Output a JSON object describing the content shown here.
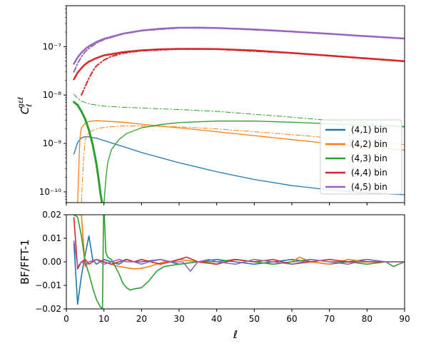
{
  "chart_data": [
    {
      "panel": "top",
      "type": "line",
      "ylabel": "C_ℓ^{gεℓ}",
      "ylabel_main": "C",
      "ylabel_sub": "ℓ",
      "ylabel_sup": "gεℓ",
      "yscale": "log",
      "xlim": [
        0,
        90
      ],
      "ylim": [
        6e-11,
        7e-07
      ],
      "yticks": [
        {
          "value": 1e-10,
          "label": "10⁻¹⁰"
        },
        {
          "value": 1e-09,
          "label": "10⁻⁹"
        },
        {
          "value": 1e-08,
          "label": "10⁻⁸"
        },
        {
          "value": 1e-07,
          "label": "10⁻⁷"
        }
      ],
      "legend_position": "bottom-right",
      "grid": false,
      "series": [
        {
          "name": "(4,1) bin",
          "color": "#1f77b4",
          "style": "solid",
          "width": 1.3,
          "x": [
            2,
            3,
            4,
            5,
            6,
            8,
            10,
            15,
            20,
            30,
            40,
            50,
            60,
            70,
            80,
            90
          ],
          "y": [
            6e-10,
            1.05e-09,
            1.3e-09,
            1.38e-09,
            1.37e-09,
            1.28e-09,
            1.15e-09,
            8.7e-10,
            6.5e-10,
            4e-10,
            2.6e-10,
            1.8e-10,
            1.35e-10,
            1.1e-10,
            9.5e-11,
            8.7e-11
          ]
        },
        {
          "name": "(4,2) bin",
          "color": "#ff7f0e",
          "style": "solid",
          "width": 1.3,
          "x": [
            3,
            3.3,
            3.6,
            4,
            5,
            6,
            8,
            10,
            15,
            20,
            30,
            40,
            50,
            60,
            70,
            80,
            90
          ],
          "y": [
            6e-11,
            3e-10,
            1.3e-09,
            2.1e-09,
            2.6e-09,
            2.85e-09,
            2.95e-09,
            2.9e-09,
            2.75e-09,
            2.5e-09,
            2.1e-09,
            1.75e-09,
            1.45e-09,
            1.2e-09,
            1e-09,
            8.7e-10,
            7.3e-10
          ]
        },
        {
          "name": "(4,2) cross",
          "color": "#ff7f0e",
          "style": "dashdot",
          "width": 1,
          "x": [
            4,
            4.5,
            5,
            6,
            8,
            10,
            15,
            20,
            30,
            40,
            50,
            60,
            70,
            80,
            90
          ],
          "y": [
            6e-11,
            4e-10,
            1.2e-09,
            1.7e-09,
            2e-09,
            2.15e-09,
            2.3e-09,
            2.3e-09,
            2.2e-09,
            2e-09,
            1.75e-09,
            1.52e-09,
            1.3e-09,
            1.1e-09,
            9.5e-10
          ]
        },
        {
          "name": "(4,3) bin",
          "color": "#2ca02c",
          "style": "solid",
          "width": 1.3,
          "x": [
            10,
            10.5,
            11,
            12,
            14,
            16,
            20,
            25,
            30,
            40,
            50,
            60,
            70,
            80,
            90
          ],
          "y": [
            6e-11,
            1.8e-10,
            4e-10,
            7.5e-10,
            1.2e-09,
            1.6e-09,
            2.1e-09,
            2.45e-09,
            2.7e-09,
            2.9e-09,
            2.9e-09,
            2.75e-09,
            2.55e-09,
            2.35e-09,
            2.2e-09
          ]
        },
        {
          "name": "(4,3) bin low",
          "color": "#2ca02c",
          "style": "solid",
          "width": 3,
          "x": [
            2,
            3,
            4,
            5,
            6,
            7,
            8,
            8.6,
            9.1,
            9.5
          ],
          "y": [
            7.2e-09,
            6.2e-09,
            4.6e-09,
            3.2e-09,
            1.9e-09,
            9.5e-10,
            3.8e-10,
            1.8e-10,
            9e-11,
            6e-11
          ]
        },
        {
          "name": "(4,3) cross",
          "color": "#2ca02c",
          "style": "dashdot",
          "width": 1,
          "x": [
            2,
            3,
            4,
            5,
            6,
            8,
            10,
            15,
            20,
            30,
            40,
            50,
            60,
            70,
            80,
            90
          ],
          "y": [
            1.05e-08,
            8.5e-09,
            7.5e-09,
            7e-09,
            6.6e-09,
            6.2e-09,
            5.9e-09,
            5.6e-09,
            5.4e-09,
            5e-09,
            4.6e-09,
            4e-09,
            3.5e-09,
            3e-09,
            2.6e-09,
            2.25e-09
          ]
        },
        {
          "name": "(4,4) bin",
          "color": "#d62728",
          "style": "solid",
          "width": 2.5,
          "x": [
            2,
            3,
            4,
            5,
            6,
            8,
            10,
            15,
            20,
            25,
            30,
            35,
            40,
            50,
            60,
            70,
            80,
            90
          ],
          "y": [
            2.1e-08,
            2.9e-08,
            3.6e-08,
            4.3e-08,
            4.9e-08,
            5.8e-08,
            6.6e-08,
            7.7e-08,
            8.4e-08,
            8.8e-08,
            9e-08,
            9e-08,
            8.9e-08,
            8.3e-08,
            7.4e-08,
            6.5e-08,
            5.7e-08,
            5e-08
          ]
        },
        {
          "name": "(4,4) cross",
          "color": "#d62728",
          "style": "dashdot",
          "width": 2,
          "x": [
            4,
            5,
            6,
            7,
            8,
            10,
            12,
            15,
            20,
            30,
            40,
            60,
            90
          ],
          "y": [
            1e-08,
            1.5e-08,
            2.2e-08,
            3.1e-08,
            4e-08,
            5.3e-08,
            6.3e-08,
            7.3e-08,
            8.2e-08,
            8.9e-08,
            8.85e-08,
            7.35e-08,
            4.95e-08
          ]
        },
        {
          "name": "(4,5) bin",
          "color": "#9467bd",
          "style": "solid",
          "width": 2.5,
          "x": [
            2,
            3,
            4,
            5,
            6,
            8,
            10,
            15,
            20,
            25,
            30,
            35,
            40,
            50,
            60,
            70,
            80,
            90
          ],
          "y": [
            4.4e-08,
            6e-08,
            7.5e-08,
            8.9e-08,
            1.02e-07,
            1.25e-07,
            1.45e-07,
            1.85e-07,
            2.15e-07,
            2.35e-07,
            2.45e-07,
            2.47e-07,
            2.43e-07,
            2.27e-07,
            2.05e-07,
            1.84e-07,
            1.64e-07,
            1.47e-07
          ]
        },
        {
          "name": "(4,5) cross",
          "color": "#9467bd",
          "style": "dashdot",
          "width": 2,
          "x": [
            2,
            3,
            4,
            5,
            6,
            8,
            10,
            15,
            20,
            30,
            40,
            60,
            90
          ],
          "y": [
            3e-08,
            4.5e-08,
            6.2e-08,
            7.8e-08,
            9.2e-08,
            1.18e-07,
            1.4e-07,
            1.82e-07,
            2.13e-07,
            2.44e-07,
            2.42e-07,
            2.04e-07,
            1.46e-07
          ]
        }
      ],
      "legend": [
        {
          "label": "(4,1) bin",
          "color": "#1f77b4"
        },
        {
          "label": "(4,2) bin",
          "color": "#ff7f0e"
        },
        {
          "label": "(4,3) bin",
          "color": "#2ca02c"
        },
        {
          "label": "(4,4) bin",
          "color": "#d62728"
        },
        {
          "label": "(4,5) bin",
          "color": "#9467bd"
        }
      ]
    },
    {
      "panel": "bottom",
      "type": "line",
      "xlabel": "ℓ",
      "ylabel": "BF/FFT-1",
      "xlim": [
        0,
        90
      ],
      "ylim": [
        -0.02,
        0.02
      ],
      "xticks": [
        {
          "value": 0,
          "label": "0"
        },
        {
          "value": 10,
          "label": "10"
        },
        {
          "value": 20,
          "label": "20"
        },
        {
          "value": 30,
          "label": "30"
        },
        {
          "value": 40,
          "label": "40"
        },
        {
          "value": 50,
          "label": "50"
        },
        {
          "value": 60,
          "label": "60"
        },
        {
          "value": 70,
          "label": "70"
        },
        {
          "value": 80,
          "label": "80"
        },
        {
          "value": 90,
          "label": "90"
        }
      ],
      "yticks": [
        {
          "value": -0.02,
          "label": "−0.02"
        },
        {
          "value": -0.01,
          "label": "−0.01"
        },
        {
          "value": 0.0,
          "label": "0.00"
        },
        {
          "value": 0.01,
          "label": "0.01"
        },
        {
          "value": 0.02,
          "label": "0.02"
        }
      ],
      "grid": false,
      "series": [
        {
          "name": "(4,1) bin",
          "color": "#1f77b4",
          "x": [
            2,
            3,
            4,
            5,
            6,
            7,
            8,
            9,
            10,
            12,
            14,
            16,
            18,
            20,
            25,
            30,
            35,
            40,
            45,
            50,
            55,
            60,
            65,
            70,
            75,
            80,
            85,
            90
          ],
          "y": [
            0.008,
            -0.018,
            -0.006,
            0.003,
            0.011,
            0.001,
            -0.001,
            0.0,
            0.001,
            0.0,
            -0.001,
            0.001,
            0.0,
            0.0,
            0.001,
            -0.001,
            0.0,
            0.001,
            0.0,
            -0.001,
            0.0,
            0.001,
            0.0,
            -0.001,
            0.0,
            0.001,
            0.0,
            0.0
          ]
        },
        {
          "name": "(4,2) bin",
          "color": "#ff7f0e",
          "x": [
            2,
            3,
            4,
            5,
            6,
            8,
            10,
            12,
            14,
            16,
            18,
            20,
            22,
            24,
            26,
            28,
            30,
            35,
            40,
            45,
            50,
            55,
            60,
            62,
            65,
            70,
            75,
            80,
            85,
            90
          ],
          "y": [
            0.02,
            0.02,
            0.02,
            -0.002,
            0.0,
            0.001,
            0.0,
            -0.001,
            -0.002,
            -0.0025,
            -0.003,
            -0.0028,
            -0.002,
            -0.001,
            0.0,
            0.0,
            0.001,
            0.0,
            -0.001,
            0.001,
            0.0,
            -0.001,
            0.0,
            0.002,
            0.0,
            -0.001,
            0.001,
            0.0,
            0.0,
            0.0
          ]
        },
        {
          "name": "(4,3) bin",
          "color": "#2ca02c",
          "x": [
            2,
            3,
            4,
            5,
            6,
            7,
            8,
            9,
            9.6,
            9.9,
            10.1,
            10.5,
            11,
            12,
            13,
            14,
            15,
            16,
            17,
            18,
            20,
            22,
            24,
            26,
            30,
            35,
            40,
            45,
            50,
            55,
            60,
            65,
            70,
            75,
            80,
            85,
            87,
            90
          ],
          "y": [
            0.02,
            0.019,
            0.011,
            0.0,
            -0.005,
            -0.011,
            -0.016,
            -0.019,
            -0.02,
            0.02,
            0.02,
            0.004,
            0.002,
            0.001,
            -0.002,
            -0.005,
            -0.009,
            -0.011,
            -0.012,
            -0.0115,
            -0.011,
            -0.008,
            -0.004,
            -0.002,
            -0.001,
            0.0,
            0.0,
            0.001,
            0.0,
            -0.001,
            0.0,
            0.001,
            0.0,
            0.0,
            -0.001,
            0.0,
            -0.002,
            0.0
          ]
        },
        {
          "name": "(4,4) bin",
          "color": "#d62728",
          "x": [
            2,
            3,
            4,
            5,
            6,
            8,
            10,
            12,
            14,
            16,
            18,
            20,
            25,
            30,
            32,
            35,
            40,
            45,
            50,
            55,
            60,
            65,
            70,
            75,
            80,
            85,
            90
          ],
          "y": [
            0.019,
            -0.003,
            0.0,
            0.001,
            -0.001,
            0.001,
            0.0,
            -0.001,
            0.0,
            0.001,
            0.0,
            0.001,
            -0.001,
            0.001,
            0.002,
            0.0,
            -0.001,
            0.001,
            0.0,
            0.001,
            -0.001,
            0.0,
            0.001,
            0.0,
            0.0,
            0.0,
            0.0
          ]
        },
        {
          "name": "(4,5) bin",
          "color": "#9467bd",
          "x": [
            2,
            3,
            4,
            5,
            6,
            8,
            10,
            12,
            14,
            16,
            18,
            20,
            22,
            25,
            28,
            31,
            33,
            35,
            38,
            40,
            45,
            50,
            55,
            60,
            63,
            65,
            70,
            75,
            80,
            85,
            90
          ],
          "y": [
            0.009,
            -0.002,
            0.0,
            -0.001,
            0.0,
            0.001,
            -0.001,
            0.0,
            0.001,
            0.0,
            0.0,
            -0.001,
            0.0,
            0.001,
            0.0,
            0.0,
            -0.004,
            0.0,
            0.001,
            0.0,
            -0.001,
            0.001,
            0.0,
            -0.001,
            0.0,
            0.001,
            0.0,
            -0.001,
            0.001,
            0.0,
            0.0
          ]
        }
      ]
    }
  ]
}
